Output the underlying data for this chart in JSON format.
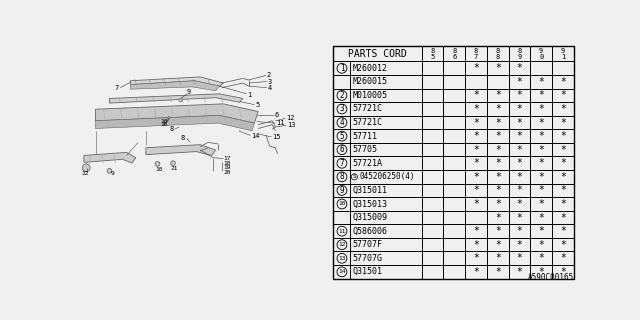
{
  "diagram_code": "A590C00165",
  "table_header_main": "PARTS CORD",
  "col_headers": [
    "8\n5",
    "8\n6",
    "8\n7",
    "8\n8",
    "8\n9",
    "9\n0",
    "9\n1"
  ],
  "rows": [
    {
      "ref": "1",
      "part": "M260012",
      "stars": [
        0,
        0,
        1,
        1,
        1,
        0,
        0
      ]
    },
    {
      "ref": "",
      "part": "M260015",
      "stars": [
        0,
        0,
        0,
        0,
        1,
        1,
        1
      ]
    },
    {
      "ref": "2",
      "part": "M010005",
      "stars": [
        0,
        0,
        1,
        1,
        1,
        1,
        1
      ]
    },
    {
      "ref": "3",
      "part": "57721C",
      "stars": [
        0,
        0,
        1,
        1,
        1,
        1,
        1
      ]
    },
    {
      "ref": "4",
      "part": "57721C",
      "stars": [
        0,
        0,
        1,
        1,
        1,
        1,
        1
      ]
    },
    {
      "ref": "5",
      "part": "57711",
      "stars": [
        0,
        0,
        1,
        1,
        1,
        1,
        1
      ]
    },
    {
      "ref": "6",
      "part": "57705",
      "stars": [
        0,
        0,
        1,
        1,
        1,
        1,
        1
      ]
    },
    {
      "ref": "7",
      "part": "57721A",
      "stars": [
        0,
        0,
        1,
        1,
        1,
        1,
        1
      ]
    },
    {
      "ref": "8",
      "part": "S045206250(4)",
      "stars": [
        0,
        0,
        1,
        1,
        1,
        1,
        1
      ]
    },
    {
      "ref": "9",
      "part": "Q315011",
      "stars": [
        0,
        0,
        1,
        1,
        1,
        1,
        1
      ]
    },
    {
      "ref": "10",
      "part": "Q315013",
      "stars": [
        0,
        0,
        1,
        1,
        1,
        1,
        1
      ]
    },
    {
      "ref": "",
      "part": "Q315009",
      "stars": [
        0,
        0,
        0,
        1,
        1,
        1,
        1
      ]
    },
    {
      "ref": "11",
      "part": "Q586006",
      "stars": [
        0,
        0,
        1,
        1,
        1,
        1,
        1
      ]
    },
    {
      "ref": "12",
      "part": "57707F",
      "stars": [
        0,
        0,
        1,
        1,
        1,
        1,
        1
      ]
    },
    {
      "ref": "13",
      "part": "57707G",
      "stars": [
        0,
        0,
        1,
        1,
        1,
        1,
        1
      ]
    },
    {
      "ref": "14",
      "part": "Q31501",
      "stars": [
        0,
        0,
        1,
        1,
        1,
        1,
        1
      ]
    }
  ],
  "bg_color": "#f0f0f0",
  "line_color": "#000000",
  "text_color": "#000000"
}
